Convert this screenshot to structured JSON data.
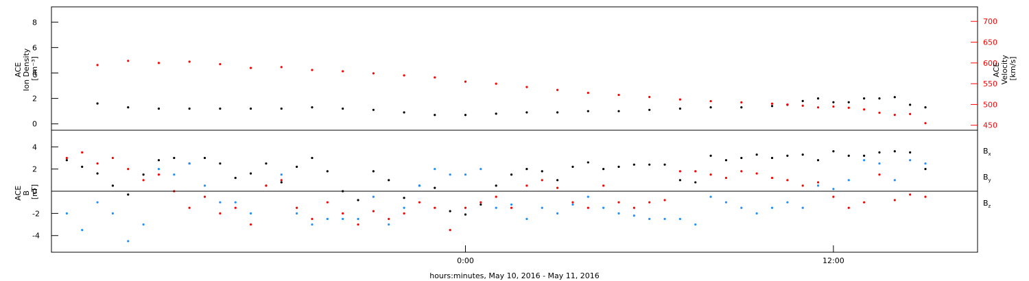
{
  "chart_data": [
    {
      "panel": "plasma",
      "type": "scatter",
      "left_axis": {
        "label_lines": [
          "ACE",
          "Ion Density",
          "[cm⁻³]"
        ],
        "ticks": [
          "0",
          "2",
          "4",
          "6",
          "8"
        ],
        "ylim": [
          -0.5,
          9.2
        ],
        "color": "#000000"
      },
      "right_axis": {
        "label_lines": [
          "ACE",
          "Velocity",
          "[km/s]"
        ],
        "ticks": [
          "450",
          "500",
          "550",
          "600",
          "650",
          "700"
        ],
        "ylim": [
          438,
          735
        ],
        "color": "#ff0000"
      },
      "series": [
        {
          "color": "#000000",
          "axis": "left",
          "x": [
            -12.0,
            -11.0,
            -10.0,
            -9.0,
            -8.0,
            -7.0,
            -6.0,
            -5.0,
            -4.0,
            -3.0,
            -2.0,
            -1.0,
            0.0,
            1.0,
            2.0,
            3.0,
            4.0,
            5.0,
            6.0,
            7.0,
            8.0,
            9.0,
            10.0,
            10.5,
            11.0,
            11.5,
            12.0,
            12.5,
            13.0,
            13.5,
            14.0,
            14.5,
            15.0
          ],
          "y": [
            1.6,
            1.3,
            1.2,
            1.2,
            1.2,
            1.2,
            1.2,
            1.3,
            1.2,
            1.1,
            0.9,
            0.7,
            0.7,
            0.8,
            0.9,
            0.9,
            1.0,
            1.0,
            1.1,
            1.2,
            1.3,
            1.3,
            1.4,
            1.5,
            1.8,
            2.0,
            1.7,
            1.7,
            2.0,
            2.0,
            2.1,
            1.5,
            1.3
          ]
        },
        {
          "color": "#ff0000",
          "axis": "right",
          "x": [
            -12.0,
            -11.0,
            -10.0,
            -9.0,
            -8.0,
            -7.0,
            -6.0,
            -5.0,
            -4.0,
            -3.0,
            -2.0,
            -1.0,
            0.0,
            1.0,
            2.0,
            3.0,
            4.0,
            5.0,
            6.0,
            7.0,
            8.0,
            9.0,
            10.0,
            10.5,
            11.0,
            11.5,
            12.0,
            12.5,
            13.0,
            13.5,
            14.0,
            14.5,
            15.0
          ],
          "y": [
            595,
            605,
            600,
            603,
            597,
            588,
            590,
            583,
            580,
            575,
            570,
            565,
            555,
            550,
            542,
            535,
            528,
            523,
            518,
            512,
            508,
            505,
            502,
            500,
            497,
            493,
            495,
            492,
            488,
            480,
            475,
            477,
            455
          ]
        }
      ]
    },
    {
      "panel": "magnetic",
      "type": "scatter",
      "left_axis": {
        "label_lines": [
          "ACE",
          "B",
          "[nT]"
        ],
        "ticks": [
          "-4",
          "-2",
          "0",
          "2",
          "4"
        ],
        "ylim": [
          -5.5,
          5.5
        ],
        "color": "#000000"
      },
      "xaxis": {
        "ticks": [
          "0:00",
          "12:00"
        ],
        "xlabel": "hours:minutes, May 10, 2016 - May 11, 2016",
        "xlim": [
          -13.5,
          16.7
        ]
      },
      "zero_line": true,
      "series": [
        {
          "name": "B",
          "sub": "x",
          "color": "#000000",
          "x": [
            -13.0,
            -12.5,
            -12.0,
            -11.5,
            -11.0,
            -10.5,
            -10.0,
            -9.5,
            -9.0,
            -8.5,
            -8.0,
            -7.5,
            -7.0,
            -6.5,
            -6.0,
            -5.5,
            -5.0,
            -4.5,
            -4.0,
            -3.5,
            -3.0,
            -2.5,
            -2.0,
            -1.5,
            -1.0,
            -0.5,
            0.0,
            0.5,
            1.0,
            1.5,
            2.0,
            2.5,
            3.0,
            3.5,
            4.0,
            4.5,
            5.0,
            5.5,
            6.0,
            6.5,
            7.0,
            7.5,
            8.0,
            8.5,
            9.0,
            9.5,
            10.0,
            10.5,
            11.0,
            11.5,
            12.0,
            12.5,
            13.0,
            13.5,
            14.0,
            14.5,
            15.0
          ],
          "y": [
            2.8,
            2.2,
            1.6,
            0.5,
            -0.3,
            1.5,
            2.8,
            3.0,
            2.5,
            3.0,
            2.5,
            1.2,
            1.6,
            2.5,
            0.8,
            2.2,
            3.0,
            1.8,
            0.0,
            -0.8,
            1.8,
            1.0,
            -0.6,
            0.5,
            0.3,
            -1.8,
            -2.1,
            -1.2,
            0.5,
            1.5,
            2.0,
            1.8,
            1.0,
            2.2,
            2.6,
            2.0,
            2.2,
            2.4,
            2.4,
            2.4,
            1.0,
            0.8,
            3.2,
            2.8,
            3.0,
            3.3,
            3.0,
            3.2,
            3.3,
            2.8,
            3.6,
            3.2,
            3.2,
            3.5,
            3.6,
            3.5,
            2.0
          ]
        },
        {
          "name": "B",
          "sub": "y",
          "color": "#1e90ff",
          "x": [
            -13.0,
            -12.5,
            -12.0,
            -11.5,
            -11.0,
            -10.5,
            -10.0,
            -9.5,
            -9.0,
            -8.5,
            -8.0,
            -7.5,
            -7.0,
            -6.5,
            -6.0,
            -5.5,
            -5.0,
            -4.5,
            -4.0,
            -3.5,
            -3.0,
            -2.5,
            -2.0,
            -1.5,
            -1.0,
            -0.5,
            0.0,
            0.5,
            1.0,
            1.5,
            2.0,
            2.5,
            3.0,
            3.5,
            4.0,
            4.5,
            5.0,
            5.5,
            6.0,
            6.5,
            7.0,
            7.5,
            8.0,
            8.5,
            9.0,
            9.5,
            10.0,
            10.5,
            11.0,
            11.5,
            12.0,
            12.5,
            13.0,
            13.5,
            14.0,
            14.5,
            15.0
          ],
          "y": [
            -2.0,
            -3.5,
            -1.0,
            -2.0,
            -4.5,
            -3.0,
            2.0,
            1.5,
            2.5,
            0.5,
            -1.0,
            -1.0,
            -2.0,
            0.5,
            1.5,
            -2.0,
            -3.0,
            -2.5,
            -2.5,
            -2.5,
            -0.5,
            -3.0,
            -1.5,
            0.5,
            2.0,
            1.5,
            1.5,
            2.0,
            -1.5,
            -1.2,
            -2.5,
            -1.5,
            -2.0,
            -1.2,
            -0.5,
            -1.5,
            -2.0,
            -2.2,
            -2.5,
            -2.5,
            -2.5,
            -3.0,
            -0.5,
            -1.0,
            -1.5,
            -2.0,
            -1.5,
            -1.0,
            -1.5,
            0.5,
            0.2,
            1.0,
            2.8,
            2.5,
            1.0,
            2.8,
            2.5
          ]
        },
        {
          "name": "B",
          "sub": "z",
          "color": "#ff0000",
          "x": [
            -13.0,
            -12.5,
            -12.0,
            -11.5,
            -11.0,
            -10.5,
            -10.0,
            -9.5,
            -9.0,
            -8.5,
            -8.0,
            -7.5,
            -7.0,
            -6.5,
            -6.0,
            -5.5,
            -5.0,
            -4.5,
            -4.0,
            -3.5,
            -3.0,
            -2.5,
            -2.0,
            -1.5,
            -1.0,
            -0.5,
            0.0,
            0.5,
            1.0,
            1.5,
            2.0,
            2.5,
            3.0,
            3.5,
            4.0,
            4.5,
            5.0,
            5.5,
            6.0,
            6.5,
            7.0,
            7.5,
            8.0,
            8.5,
            9.0,
            9.5,
            10.0,
            10.5,
            11.0,
            11.5,
            12.0,
            12.5,
            13.0,
            13.5,
            14.0,
            14.5,
            15.0
          ],
          "y": [
            3.0,
            3.5,
            2.5,
            3.0,
            2.0,
            1.0,
            1.5,
            0.0,
            -1.5,
            -0.5,
            -2.0,
            -1.5,
            -3.0,
            0.5,
            1.0,
            -1.5,
            -2.5,
            -1.0,
            -2.0,
            -3.0,
            -1.8,
            -2.5,
            -2.0,
            -1.0,
            -1.5,
            -3.5,
            -1.5,
            -1.0,
            -0.5,
            -1.5,
            0.5,
            1.0,
            0.3,
            -1.0,
            -1.5,
            0.5,
            -1.0,
            -1.5,
            -1.0,
            -0.8,
            1.8,
            1.8,
            1.5,
            1.2,
            1.8,
            1.6,
            1.2,
            1.0,
            0.5,
            0.8,
            -0.5,
            -1.5,
            -1.0,
            1.5,
            -0.8,
            -0.3,
            -0.5
          ]
        }
      ]
    }
  ]
}
